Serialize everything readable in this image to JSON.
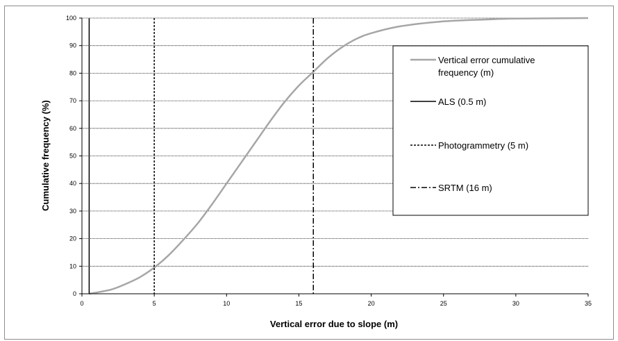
{
  "chart_data": {
    "type": "line",
    "xlabel": "Vertical error due to slope (m)",
    "ylabel": "Cumulative frequency (%)",
    "xlim": [
      0,
      35
    ],
    "ylim": [
      0,
      100
    ],
    "x_ticks": [
      0,
      5,
      10,
      15,
      20,
      25,
      30,
      35
    ],
    "y_ticks": [
      0,
      10,
      20,
      30,
      40,
      50,
      60,
      70,
      80,
      90,
      100
    ],
    "grid": "horizontal dotted",
    "legend_position": "right",
    "series": [
      {
        "name": "Vertical error cumulative frequency (m)",
        "color": "#a6a6a6",
        "x": [
          0.5,
          2,
          3,
          4,
          5,
          6,
          7,
          8,
          9,
          10,
          11,
          12,
          13,
          14,
          15,
          16,
          17,
          18,
          19,
          20,
          22,
          25,
          28,
          30,
          35
        ],
        "y": [
          0,
          1.5,
          3.5,
          6,
          9.5,
          14,
          19.5,
          25.5,
          32.5,
          40,
          47.5,
          55,
          62.5,
          69.5,
          75.5,
          80.5,
          85.5,
          89.5,
          92.5,
          94.5,
          97,
          98.8,
          99.5,
          99.8,
          100
        ]
      }
    ],
    "reference_lines": [
      {
        "name": "ALS (0.5 m)",
        "x": 0.5,
        "style": "solid",
        "color": "#000000"
      },
      {
        "name": "Photogrammetry (5 m)",
        "x": 5,
        "style": "dashed",
        "color": "#000000"
      },
      {
        "name": "SRTM (16 m)",
        "x": 16,
        "style": "dashdot",
        "color": "#000000"
      }
    ]
  },
  "legend": {
    "curve_line1": "Vertical error cumulative",
    "curve_line2": "frequency (m)",
    "als": "ALS (0.5 m)",
    "photo": "Photogrammetry (5 m)",
    "srtm": "SRTM (16 m)"
  }
}
